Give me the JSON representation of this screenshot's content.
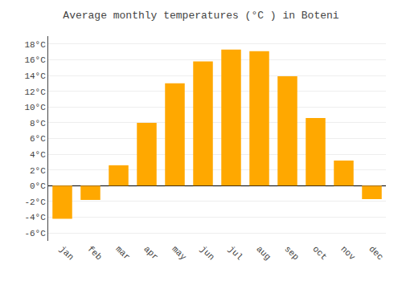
{
  "chart_data": {
    "type": "bar",
    "title": "Average monthly temperatures (°C ) in Boteni",
    "categories": [
      "jan",
      "feb",
      "mar",
      "apr",
      "may",
      "jun",
      "jul",
      "aug",
      "sep",
      "oct",
      "nov",
      "dec"
    ],
    "values": [
      -4.2,
      -1.8,
      2.6,
      8.0,
      13.0,
      15.8,
      17.3,
      17.1,
      13.9,
      8.6,
      3.2,
      -1.7
    ],
    "color": "#FFA800",
    "ylim": [
      -7,
      19
    ],
    "yticks": [
      {
        "value": -6,
        "label": "-6°C"
      },
      {
        "value": -4,
        "label": "-4°C"
      },
      {
        "value": -2,
        "label": "-2°C"
      },
      {
        "value": 0,
        "label": "0°C"
      },
      {
        "value": 2,
        "label": "2°C"
      },
      {
        "value": 4,
        "label": "4°C"
      },
      {
        "value": 6,
        "label": "6°C"
      },
      {
        "value": 8,
        "label": "8°C"
      },
      {
        "value": 10,
        "label": "10°C"
      },
      {
        "value": 12,
        "label": "12°C"
      },
      {
        "value": 14,
        "label": "14°C"
      },
      {
        "value": 16,
        "label": "16°C"
      },
      {
        "value": 18,
        "label": "18°C"
      }
    ],
    "grid": true
  }
}
